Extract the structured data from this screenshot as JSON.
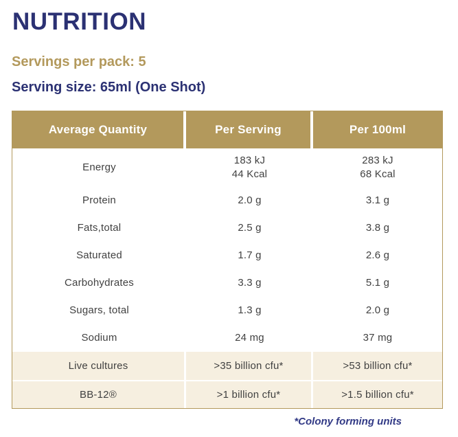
{
  "page": {
    "title": "NUTRITION",
    "servings_per_pack": "Servings per pack: 5",
    "serving_size": "Serving size: 65ml (One Shot)",
    "footnote": "*Colony forming units"
  },
  "colors": {
    "navy": "#2B3173",
    "gold": "#B3995C",
    "cream": "#F6EFE0",
    "text": "#414141",
    "white": "#FFFFFF",
    "footnote_navy": "#323A86"
  },
  "table": {
    "headers": [
      "Average Quantity",
      "Per Serving",
      "Per 100ml"
    ],
    "rows": [
      {
        "label_lines": [
          "Energy"
        ],
        "per_serving_lines": [
          "183 kJ",
          "44 Kcal"
        ],
        "per_100ml_lines": [
          "283 kJ",
          "68 Kcal"
        ],
        "shaded": false
      },
      {
        "label_lines": [
          "Protein"
        ],
        "per_serving_lines": [
          "2.0 g"
        ],
        "per_100ml_lines": [
          "3.1 g"
        ],
        "shaded": false
      },
      {
        "label_lines": [
          "Fats,total"
        ],
        "per_serving_lines": [
          "2.5 g"
        ],
        "per_100ml_lines": [
          "3.8 g"
        ],
        "shaded": false
      },
      {
        "label_lines": [
          "Saturated"
        ],
        "per_serving_lines": [
          "1.7 g"
        ],
        "per_100ml_lines": [
          "2.6 g"
        ],
        "shaded": false
      },
      {
        "label_lines": [
          "Carbohydrates"
        ],
        "per_serving_lines": [
          "3.3 g"
        ],
        "per_100ml_lines": [
          "5.1 g"
        ],
        "shaded": false
      },
      {
        "label_lines": [
          "Sugars, total"
        ],
        "per_serving_lines": [
          "1.3 g"
        ],
        "per_100ml_lines": [
          "2.0 g"
        ],
        "shaded": false
      },
      {
        "label_lines": [
          "Sodium"
        ],
        "per_serving_lines": [
          "24 mg"
        ],
        "per_100ml_lines": [
          "37 mg"
        ],
        "shaded": false
      },
      {
        "label_lines": [
          "Live cultures"
        ],
        "per_serving_lines": [
          ">35 billion cfu*"
        ],
        "per_100ml_lines": [
          ">53 billion cfu*"
        ],
        "shaded": true
      },
      {
        "label_lines": [
          "BB-12®"
        ],
        "per_serving_lines": [
          ">1 billion cfu*"
        ],
        "per_100ml_lines": [
          ">1.5 billion cfu*"
        ],
        "shaded": true
      }
    ]
  }
}
